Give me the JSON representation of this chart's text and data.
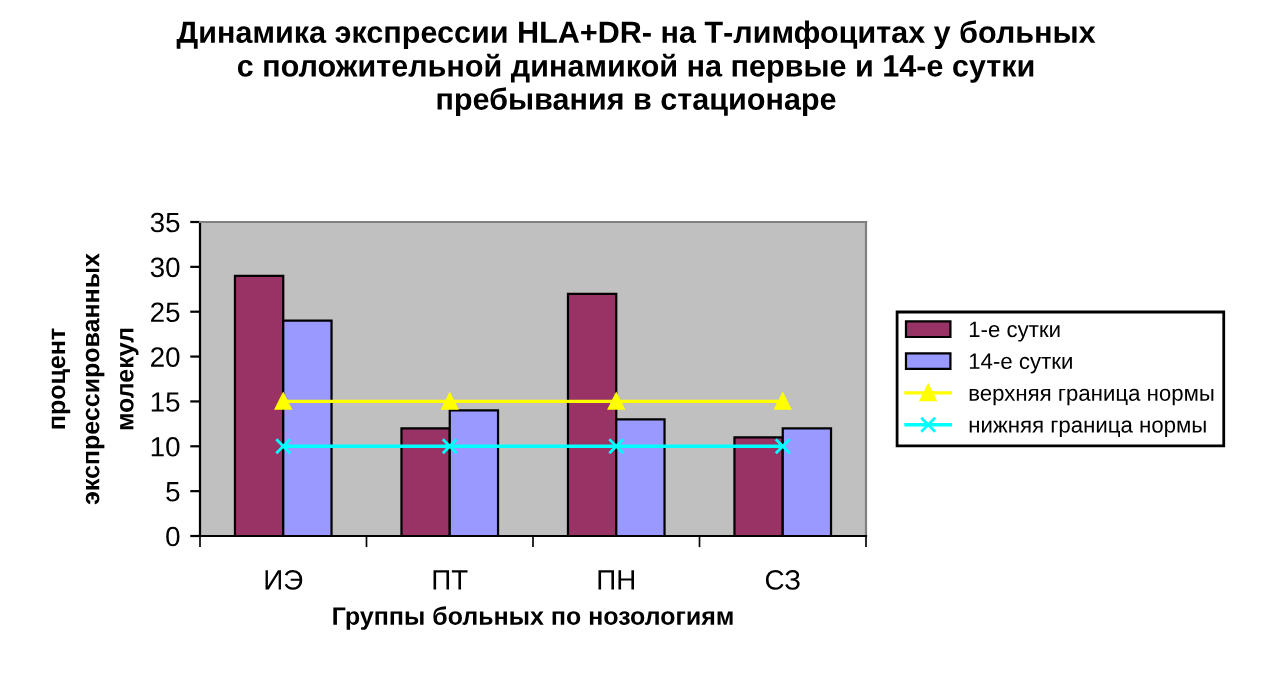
{
  "chart_data": {
    "type": "bar",
    "title": "Динамика экспрессии HLA+DR- на Т-лимфоцитах у больных\nс положительной динамикой на первые и 14-е сутки\nпребывания в стационаре",
    "xlabel": "Группы больных по нозологиям",
    "ylabel": "процент\nэкспрессированных\nмолекул",
    "categories": [
      "ИЭ",
      "ПТ",
      "ПН",
      "СЗ"
    ],
    "series": [
      {
        "name": "1-е сутки",
        "color": "#993366",
        "values": [
          29,
          12,
          27,
          11
        ]
      },
      {
        "name": "14-е сутки",
        "color": "#9999ff",
        "values": [
          24,
          14,
          13,
          12
        ]
      },
      {
        "name": "верхняя граница нормы",
        "type": "line",
        "color": "#ffff00",
        "marker": "triangle",
        "values": [
          15,
          15,
          15,
          15
        ]
      },
      {
        "name": "нижняя граница нормы",
        "type": "line",
        "color": "#00ffff",
        "marker": "cross",
        "values": [
          10,
          10,
          10,
          10
        ]
      }
    ],
    "ylim": [
      0,
      35
    ],
    "yticks": [
      0,
      5,
      10,
      15,
      20,
      25,
      30,
      35
    ],
    "grid": false,
    "legend": "right"
  }
}
